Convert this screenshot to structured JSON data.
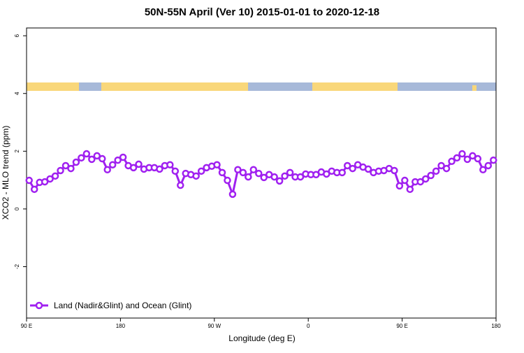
{
  "chart_data": {
    "type": "line",
    "title": "50N-55N April (Ver 10)   2015-01-01 to 2020-12-18",
    "x_label": "Longitude (deg E)",
    "y_label": "XCO2 - MLO trend (ppm)",
    "legend_position": "bottomleft",
    "x": [
      92.5,
      97.5,
      102.5,
      107.5,
      112.5,
      117.5,
      122.5,
      127.5,
      132.5,
      137.5,
      142.5,
      147.5,
      152.5,
      157.5,
      162.5,
      167.5,
      172.5,
      177.5,
      182.5,
      187.5,
      192.5,
      197.5,
      202.5,
      207.5,
      212.5,
      217.5,
      222.5,
      227.5,
      232.5,
      237.5,
      242.5,
      247.5,
      252.5,
      257.5,
      262.5,
      267.5,
      272.5,
      277.5,
      282.5,
      287.5,
      292.5,
      297.5,
      302.5,
      307.5,
      312.5,
      317.5,
      322.5,
      327.5,
      332.5,
      337.5,
      342.5,
      347.5,
      352.5,
      357.5,
      362.5,
      367.5,
      372.5,
      377.5,
      382.5,
      387.5,
      392.5,
      397.5,
      402.5,
      407.5,
      412.5,
      417.5,
      422.5,
      427.5,
      432.5,
      437.5,
      442.5,
      447.5,
      452.5,
      457.5,
      462.5,
      467.5,
      472.5,
      477.5,
      482.5,
      487.5,
      492.5,
      497.5,
      502.5,
      507.5,
      512.5,
      517.5,
      522.5,
      527.5,
      532.5,
      537.5
    ],
    "series": [
      {
        "name": "Land (Nadir&Glint) and Ocean (Glint)",
        "color": "#a020f0",
        "values": [
          0.99,
          0.68,
          0.92,
          0.94,
          1.04,
          1.14,
          1.33,
          1.5,
          1.4,
          1.62,
          1.77,
          1.91,
          1.72,
          1.84,
          1.74,
          1.36,
          1.53,
          1.69,
          1.79,
          1.5,
          1.43,
          1.55,
          1.38,
          1.43,
          1.43,
          1.38,
          1.5,
          1.53,
          1.31,
          0.82,
          1.23,
          1.19,
          1.14,
          1.31,
          1.43,
          1.48,
          1.53,
          1.26,
          0.99,
          0.51,
          1.36,
          1.26,
          1.11,
          1.36,
          1.23,
          1.09,
          1.19,
          1.11,
          0.97,
          1.14,
          1.26,
          1.11,
          1.11,
          1.21,
          1.19,
          1.19,
          1.28,
          1.21,
          1.31,
          1.26,
          1.26,
          1.5,
          1.4,
          1.53,
          1.45,
          1.38,
          1.26,
          1.31,
          1.33,
          1.4,
          1.33,
          0.8,
          0.99,
          0.68,
          0.94,
          0.94,
          1.04,
          1.16,
          1.31,
          1.5,
          1.4,
          1.65,
          1.77,
          1.91,
          1.72,
          1.84,
          1.74,
          1.36,
          1.5,
          1.69
        ]
      }
    ],
    "xlim": [
      90,
      540
    ],
    "xticks": [
      {
        "value": 90,
        "label": "90 E"
      },
      180,
      {
        "value": 270,
        "label": "90 W"
      },
      {
        "value": 360,
        "label": "0"
      },
      {
        "value": 450,
        "label": "90 E"
      },
      180.000001
    ],
    "ylim": [
      -3.78,
      6.27
    ],
    "yticks": [
      -2,
      0,
      2,
      4,
      6
    ]
  }
}
